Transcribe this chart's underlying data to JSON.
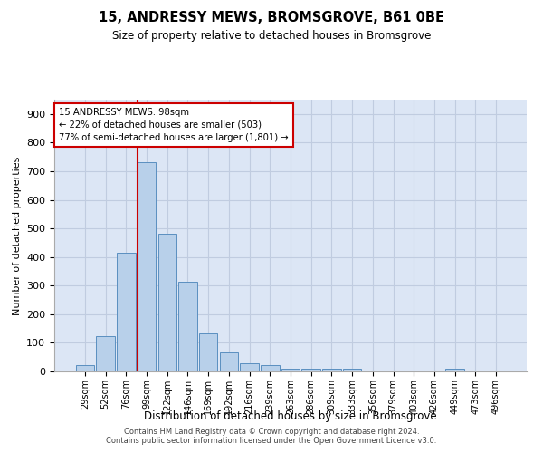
{
  "title": "15, ANDRESSY MEWS, BROMSGROVE, B61 0BE",
  "subtitle": "Size of property relative to detached houses in Bromsgrove",
  "xlabel": "Distribution of detached houses by size in Bromsgrove",
  "ylabel": "Number of detached properties",
  "categories": [
    "29sqm",
    "52sqm",
    "76sqm",
    "99sqm",
    "122sqm",
    "146sqm",
    "169sqm",
    "192sqm",
    "216sqm",
    "239sqm",
    "263sqm",
    "286sqm",
    "309sqm",
    "333sqm",
    "356sqm",
    "379sqm",
    "403sqm",
    "426sqm",
    "449sqm",
    "473sqm",
    "496sqm"
  ],
  "values": [
    22,
    122,
    415,
    733,
    480,
    315,
    133,
    65,
    28,
    22,
    10,
    8,
    8,
    8,
    0,
    0,
    0,
    0,
    10,
    0,
    0
  ],
  "bar_color": "#b8d0ea",
  "bar_edge_color": "#5a8fc0",
  "vline_color": "#cc0000",
  "annotation_text": "15 ANDRESSY MEWS: 98sqm\n← 22% of detached houses are smaller (503)\n77% of semi-detached houses are larger (1,801) →",
  "annotation_box_color": "#ffffff",
  "annotation_box_edgecolor": "#cc0000",
  "ylim": [
    0,
    950
  ],
  "yticks": [
    0,
    100,
    200,
    300,
    400,
    500,
    600,
    700,
    800,
    900
  ],
  "axes_bg_color": "#dce6f5",
  "background_color": "#ffffff",
  "grid_color": "#c0cce0",
  "footer1": "Contains HM Land Registry data © Crown copyright and database right 2024.",
  "footer2": "Contains public sector information licensed under the Open Government Licence v3.0."
}
